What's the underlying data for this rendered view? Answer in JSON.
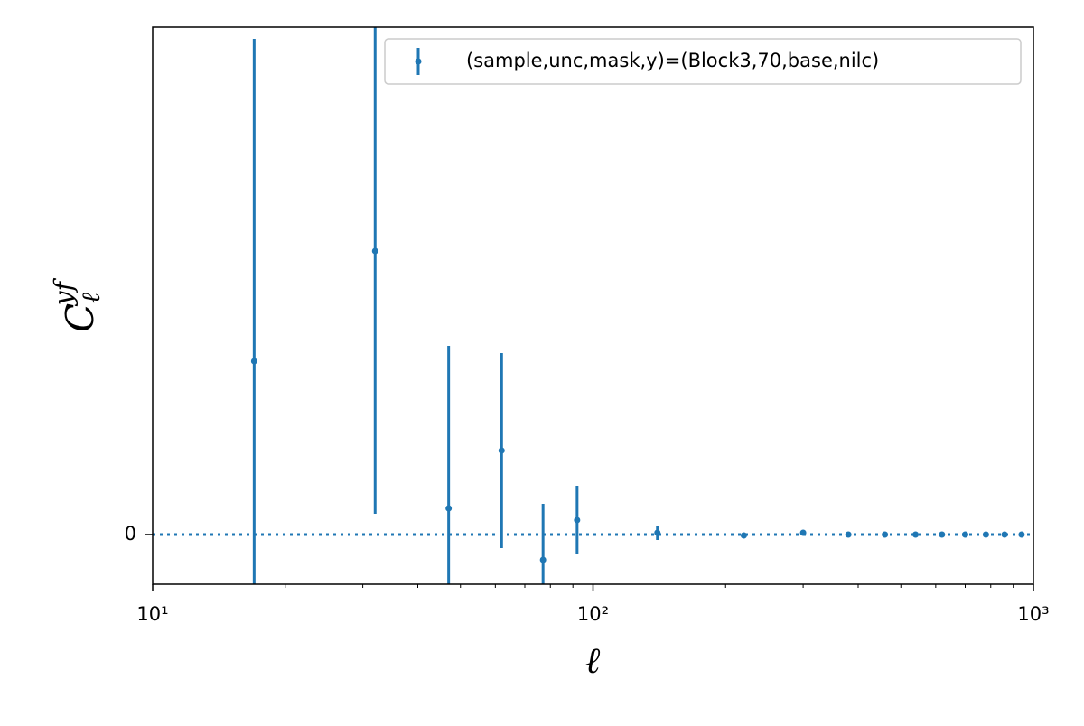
{
  "chart_data": {
    "type": "errorbar",
    "x": [
      17,
      32,
      47,
      62,
      77,
      92,
      140,
      220,
      300,
      380,
      460,
      540,
      620,
      700,
      780,
      860,
      940
    ],
    "series": [
      {
        "name": "(sample,unc,mask,y)=(Block3,70,base,nilc)",
        "color": "#1f77b4",
        "values": [
          1.92,
          3.14,
          0.29,
          0.93,
          -0.28,
          0.16,
          0.02,
          -0.01,
          0.02,
          0,
          0,
          0,
          0,
          0,
          0,
          0,
          0
        ],
        "errors": [
          3.57,
          2.91,
          1.8,
          1.08,
          0.62,
          0.38,
          0.08,
          0.01,
          0.01,
          0.01,
          0.01,
          0.01,
          0.01,
          0.01,
          0.01,
          0.01,
          0.01
        ]
      }
    ],
    "xlabel": "ℓ",
    "ylabel": {
      "base": "C",
      "sub": "ℓ",
      "sup": "yf"
    },
    "xscale": "log",
    "xlim": [
      10,
      1000
    ],
    "xticks": [
      {
        "value": 10,
        "label": "10¹"
      },
      {
        "value": 100,
        "label": "10²"
      },
      {
        "value": 1000,
        "label": "10³"
      }
    ],
    "xminorticks": [
      20,
      30,
      40,
      50,
      60,
      70,
      80,
      90,
      200,
      300,
      400,
      500,
      600,
      700,
      800,
      900
    ],
    "ylim": [
      -0.55,
      5.62
    ],
    "yticks": [
      0
    ],
    "hline": 0,
    "legend": "upper right"
  }
}
